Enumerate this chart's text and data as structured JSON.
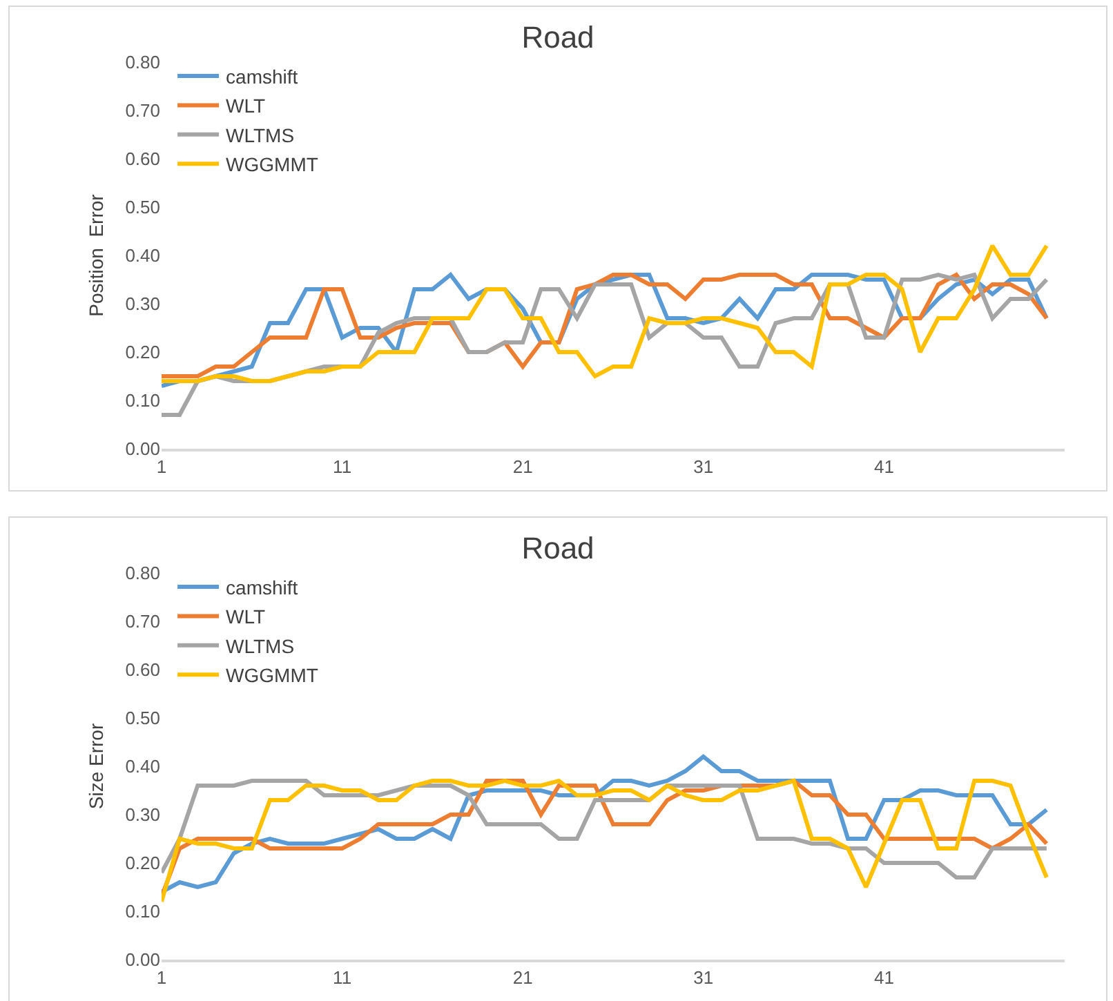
{
  "chart_data": [
    {
      "type": "line",
      "title": "Road",
      "ylabel": "Position  Error",
      "x": [
        1,
        2,
        3,
        4,
        5,
        6,
        7,
        8,
        9,
        10,
        11,
        12,
        13,
        14,
        15,
        16,
        17,
        18,
        19,
        20,
        21,
        22,
        23,
        24,
        25,
        26,
        27,
        28,
        29,
        30,
        31,
        32,
        33,
        34,
        35,
        36,
        37,
        38,
        39,
        40,
        41,
        42,
        43,
        44,
        45,
        46,
        47,
        48,
        49,
        50
      ],
      "series": [
        {
          "name": "camshift",
          "color": "#5b9bd5",
          "values": [
            0.13,
            0.14,
            0.14,
            0.15,
            0.16,
            0.17,
            0.26,
            0.26,
            0.33,
            0.33,
            0.23,
            0.25,
            0.25,
            0.2,
            0.33,
            0.33,
            0.36,
            0.31,
            0.33,
            0.33,
            0.29,
            0.22,
            0.22,
            0.31,
            0.34,
            0.35,
            0.36,
            0.36,
            0.27,
            0.27,
            0.26,
            0.27,
            0.31,
            0.27,
            0.33,
            0.33,
            0.36,
            0.36,
            0.36,
            0.35,
            0.35,
            0.27,
            0.27,
            0.31,
            0.34,
            0.35,
            0.32,
            0.35,
            0.35,
            0.27
          ]
        },
        {
          "name": "WLT",
          "color": "#ed7d31",
          "values": [
            0.15,
            0.15,
            0.15,
            0.17,
            0.17,
            0.2,
            0.23,
            0.23,
            0.23,
            0.33,
            0.33,
            0.23,
            0.23,
            0.25,
            0.26,
            0.26,
            0.26,
            0.2,
            0.2,
            0.22,
            0.17,
            0.22,
            0.22,
            0.33,
            0.34,
            0.36,
            0.36,
            0.34,
            0.34,
            0.31,
            0.35,
            0.35,
            0.36,
            0.36,
            0.36,
            0.34,
            0.34,
            0.27,
            0.27,
            0.25,
            0.23,
            0.27,
            0.27,
            0.34,
            0.36,
            0.31,
            0.34,
            0.34,
            0.32,
            0.27
          ]
        },
        {
          "name": "WLTMS",
          "color": "#a5a5a5",
          "values": [
            0.07,
            0.07,
            0.14,
            0.15,
            0.14,
            0.14,
            0.14,
            0.15,
            0.16,
            0.17,
            0.17,
            0.17,
            0.24,
            0.26,
            0.27,
            0.27,
            0.27,
            0.2,
            0.2,
            0.22,
            0.22,
            0.33,
            0.33,
            0.27,
            0.34,
            0.34,
            0.34,
            0.23,
            0.26,
            0.26,
            0.23,
            0.23,
            0.17,
            0.17,
            0.26,
            0.27,
            0.27,
            0.34,
            0.34,
            0.23,
            0.23,
            0.35,
            0.35,
            0.36,
            0.35,
            0.36,
            0.27,
            0.31,
            0.31,
            0.35
          ]
        },
        {
          "name": "WGGMMT",
          "color": "#ffc000",
          "values": [
            0.14,
            0.14,
            0.14,
            0.15,
            0.15,
            0.14,
            0.14,
            0.15,
            0.16,
            0.16,
            0.17,
            0.17,
            0.2,
            0.2,
            0.2,
            0.27,
            0.27,
            0.27,
            0.33,
            0.33,
            0.27,
            0.27,
            0.2,
            0.2,
            0.15,
            0.17,
            0.17,
            0.27,
            0.26,
            0.26,
            0.27,
            0.27,
            0.26,
            0.25,
            0.2,
            0.2,
            0.17,
            0.34,
            0.34,
            0.36,
            0.36,
            0.33,
            0.2,
            0.27,
            0.27,
            0.33,
            0.42,
            0.36,
            0.36,
            0.42
          ]
        }
      ],
      "xlim": [
        1,
        51
      ],
      "xticks": [
        1,
        11,
        21,
        31,
        41
      ],
      "ylim": [
        0,
        0.8
      ],
      "yticks": [
        {
          "value": 0,
          "label": "0.00"
        },
        {
          "value": 0.1,
          "label": "0.10"
        },
        {
          "value": 0.2,
          "label": "0.20"
        },
        {
          "value": 0.3,
          "label": "0.30"
        },
        {
          "value": 0.4,
          "label": "0.40"
        },
        {
          "value": 0.5,
          "label": "0.50"
        },
        {
          "value": 0.6,
          "label": "0.60"
        },
        {
          "value": 0.7,
          "label": "0.70"
        },
        {
          "value": 0.8,
          "label": "0.80"
        }
      ],
      "grid": false,
      "legend": "top left",
      "marker": "none",
      "line_style": "solid"
    },
    {
      "type": "line",
      "title": "Road",
      "ylabel": "Size Error",
      "x": [
        1,
        2,
        3,
        4,
        5,
        6,
        7,
        8,
        9,
        10,
        11,
        12,
        13,
        14,
        15,
        16,
        17,
        18,
        19,
        20,
        21,
        22,
        23,
        24,
        25,
        26,
        27,
        28,
        29,
        30,
        31,
        32,
        33,
        34,
        35,
        36,
        37,
        38,
        39,
        40,
        41,
        42,
        43,
        44,
        45,
        46,
        47,
        48,
        49,
        50
      ],
      "series": [
        {
          "name": "camshift",
          "color": "#5b9bd5",
          "values": [
            0.14,
            0.16,
            0.15,
            0.16,
            0.22,
            0.24,
            0.25,
            0.24,
            0.24,
            0.24,
            0.25,
            0.26,
            0.27,
            0.25,
            0.25,
            0.27,
            0.25,
            0.34,
            0.35,
            0.35,
            0.35,
            0.35,
            0.34,
            0.34,
            0.34,
            0.37,
            0.37,
            0.36,
            0.37,
            0.39,
            0.42,
            0.39,
            0.39,
            0.37,
            0.37,
            0.37,
            0.37,
            0.37,
            0.25,
            0.25,
            0.33,
            0.33,
            0.35,
            0.35,
            0.34,
            0.34,
            0.34,
            0.28,
            0.28,
            0.31
          ]
        },
        {
          "name": "WLT",
          "color": "#ed7d31",
          "values": [
            0.13,
            0.23,
            0.25,
            0.25,
            0.25,
            0.25,
            0.23,
            0.23,
            0.23,
            0.23,
            0.23,
            0.25,
            0.28,
            0.28,
            0.28,
            0.28,
            0.3,
            0.3,
            0.37,
            0.37,
            0.37,
            0.3,
            0.36,
            0.36,
            0.36,
            0.28,
            0.28,
            0.28,
            0.33,
            0.35,
            0.35,
            0.36,
            0.36,
            0.36,
            0.36,
            0.37,
            0.34,
            0.34,
            0.3,
            0.3,
            0.25,
            0.25,
            0.25,
            0.25,
            0.25,
            0.25,
            0.23,
            0.25,
            0.28,
            0.24
          ]
        },
        {
          "name": "WLTMS",
          "color": "#a5a5a5",
          "values": [
            0.18,
            0.25,
            0.36,
            0.36,
            0.36,
            0.37,
            0.37,
            0.37,
            0.37,
            0.34,
            0.34,
            0.34,
            0.34,
            0.35,
            0.36,
            0.36,
            0.36,
            0.34,
            0.28,
            0.28,
            0.28,
            0.28,
            0.25,
            0.25,
            0.33,
            0.33,
            0.33,
            0.33,
            0.36,
            0.36,
            0.36,
            0.36,
            0.36,
            0.25,
            0.25,
            0.25,
            0.24,
            0.24,
            0.23,
            0.23,
            0.2,
            0.2,
            0.2,
            0.2,
            0.17,
            0.17,
            0.23,
            0.23,
            0.23,
            0.23
          ]
        },
        {
          "name": "WGGMMT",
          "color": "#ffc000",
          "values": [
            0.12,
            0.25,
            0.24,
            0.24,
            0.23,
            0.23,
            0.33,
            0.33,
            0.36,
            0.36,
            0.35,
            0.35,
            0.33,
            0.33,
            0.36,
            0.37,
            0.37,
            0.36,
            0.36,
            0.37,
            0.36,
            0.36,
            0.37,
            0.34,
            0.34,
            0.35,
            0.35,
            0.33,
            0.36,
            0.34,
            0.33,
            0.33,
            0.35,
            0.35,
            0.36,
            0.37,
            0.25,
            0.25,
            0.23,
            0.15,
            0.24,
            0.33,
            0.33,
            0.23,
            0.23,
            0.37,
            0.37,
            0.36,
            0.26,
            0.17
          ]
        }
      ],
      "xlim": [
        1,
        51
      ],
      "xticks": [
        1,
        11,
        21,
        31,
        41
      ],
      "ylim": [
        0,
        0.8
      ],
      "yticks": [
        {
          "value": 0,
          "label": "0.00"
        },
        {
          "value": 0.1,
          "label": "0.10"
        },
        {
          "value": 0.2,
          "label": "0.20"
        },
        {
          "value": 0.3,
          "label": "0.30"
        },
        {
          "value": 0.4,
          "label": "0.40"
        },
        {
          "value": 0.5,
          "label": "0.50"
        },
        {
          "value": 0.6,
          "label": "0.60"
        },
        {
          "value": 0.7,
          "label": "0.70"
        },
        {
          "value": 0.8,
          "label": "0.80"
        }
      ],
      "grid": false,
      "legend": "top left",
      "marker": "none",
      "line_style": "solid"
    }
  ]
}
